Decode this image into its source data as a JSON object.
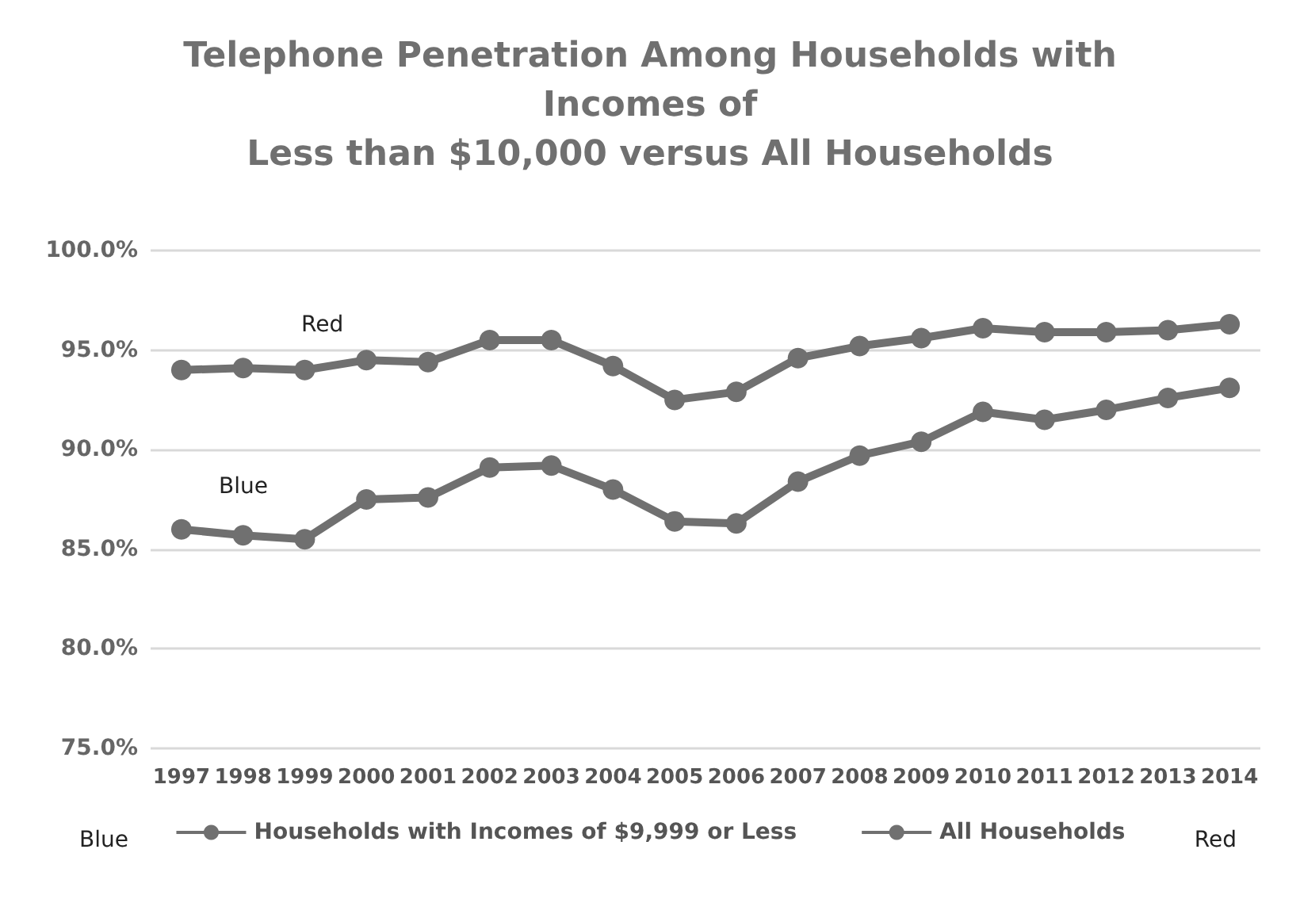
{
  "chart_data": {
    "type": "line",
    "title": "Telephone Penetration Among Households with\nIncomes of\nLess than $10,000 versus All Households",
    "categories": [
      "1997",
      "1998",
      "1999",
      "2000",
      "2001",
      "2002",
      "2003",
      "2004",
      "2005",
      "2006",
      "2007",
      "2008",
      "2009",
      "2010",
      "2011",
      "2012",
      "2013",
      "2014"
    ],
    "series": [
      {
        "name": "Households with Incomes of $9,999 or Less",
        "color": "#707070",
        "values": [
          86.0,
          85.7,
          85.5,
          87.5,
          87.6,
          89.1,
          89.2,
          88.0,
          86.4,
          86.3,
          88.4,
          89.7,
          90.4,
          91.9,
          91.5,
          92.0,
          92.6,
          93.1
        ]
      },
      {
        "name": "All Households",
        "color": "#707070",
        "values": [
          94.0,
          94.1,
          94.0,
          94.5,
          94.4,
          95.5,
          95.5,
          94.2,
          92.5,
          92.9,
          94.6,
          95.2,
          95.6,
          96.1,
          95.9,
          95.9,
          96.0,
          96.3
        ]
      }
    ],
    "ylim": [
      75,
      100
    ],
    "yticks": [
      {
        "value": 75,
        "label": "75.0%"
      },
      {
        "value": 80,
        "label": "80.0%"
      },
      {
        "value": 85,
        "label": "85.0%"
      },
      {
        "value": 90,
        "label": "90.0%"
      },
      {
        "value": 95,
        "label": "95.0%"
      },
      {
        "value": 100,
        "label": "100.0%"
      }
    ],
    "annotations": [
      "Red",
      "Blue",
      "Blue",
      "Red"
    ],
    "grid": "y",
    "legend": "bottom",
    "marker": "circle",
    "line_style": "solid"
  }
}
